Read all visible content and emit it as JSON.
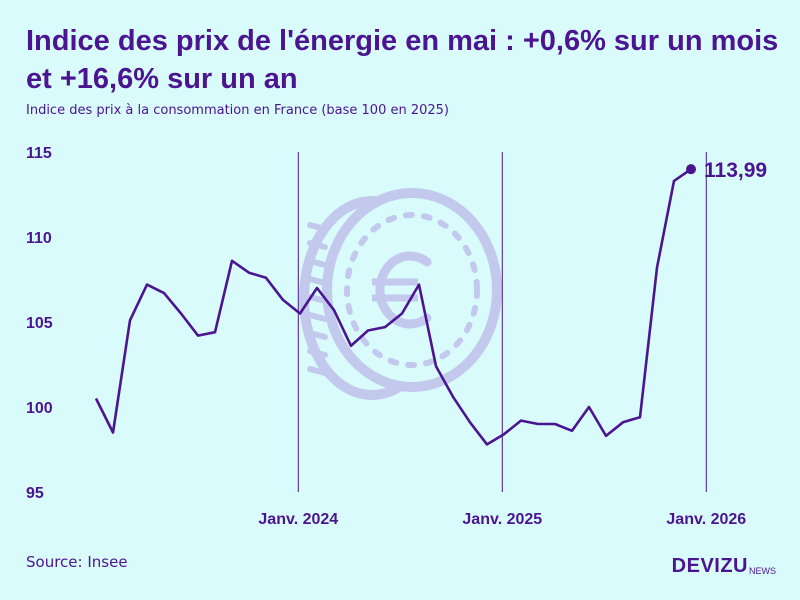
{
  "title": "Indice des prix de l'énergie en mai : +0,6% sur un mois et +16,6% sur un an",
  "subtitle": "Indice des prix à la consommation en France (base 100 en 2025)",
  "source": "Source: Insee",
  "logo": {
    "main": "DEVIZU",
    "sub": "NEWS"
  },
  "colors": {
    "background": "#d9fbfb",
    "line": "#4b1591",
    "watermark": "#c2c9ec"
  },
  "watermark_icon": "euro-coin-icon",
  "chart_data": {
    "type": "line",
    "title": "Indice des prix de l'énergie en mai : +0,6% sur un mois et +16,6% sur un an",
    "subtitle": "Indice des prix à la consommation en France (base 100 en 2025)",
    "xlabel": "",
    "ylabel": "",
    "ylim": [
      95,
      115
    ],
    "yticks": [
      95,
      100,
      105,
      110,
      115
    ],
    "xticks": [
      {
        "label": "Janv. 2024",
        "month_index": 12
      },
      {
        "label": "Janv. 2025",
        "month_index": 24
      },
      {
        "label": "Janv. 2026",
        "month_index": 36
      }
    ],
    "grid": "vertical lines at year starts",
    "last_value_label": "113,99",
    "series": [
      {
        "start": "2023-01",
        "values": [
          100.5,
          98.5,
          105.1,
          107.2,
          106.7,
          105.5,
          104.2,
          104.4,
          108.6,
          107.9,
          107.6,
          106.3,
          105.5,
          107.0,
          105.7,
          103.6,
          104.5,
          104.7,
          105.5,
          107.2,
          102.4,
          100.6,
          99.1,
          97.8,
          98.4,
          99.2,
          99.0,
          99.0,
          98.6,
          100.0,
          98.3,
          99.1,
          99.4,
          108.2,
          113.3,
          113.99
        ]
      }
    ]
  }
}
